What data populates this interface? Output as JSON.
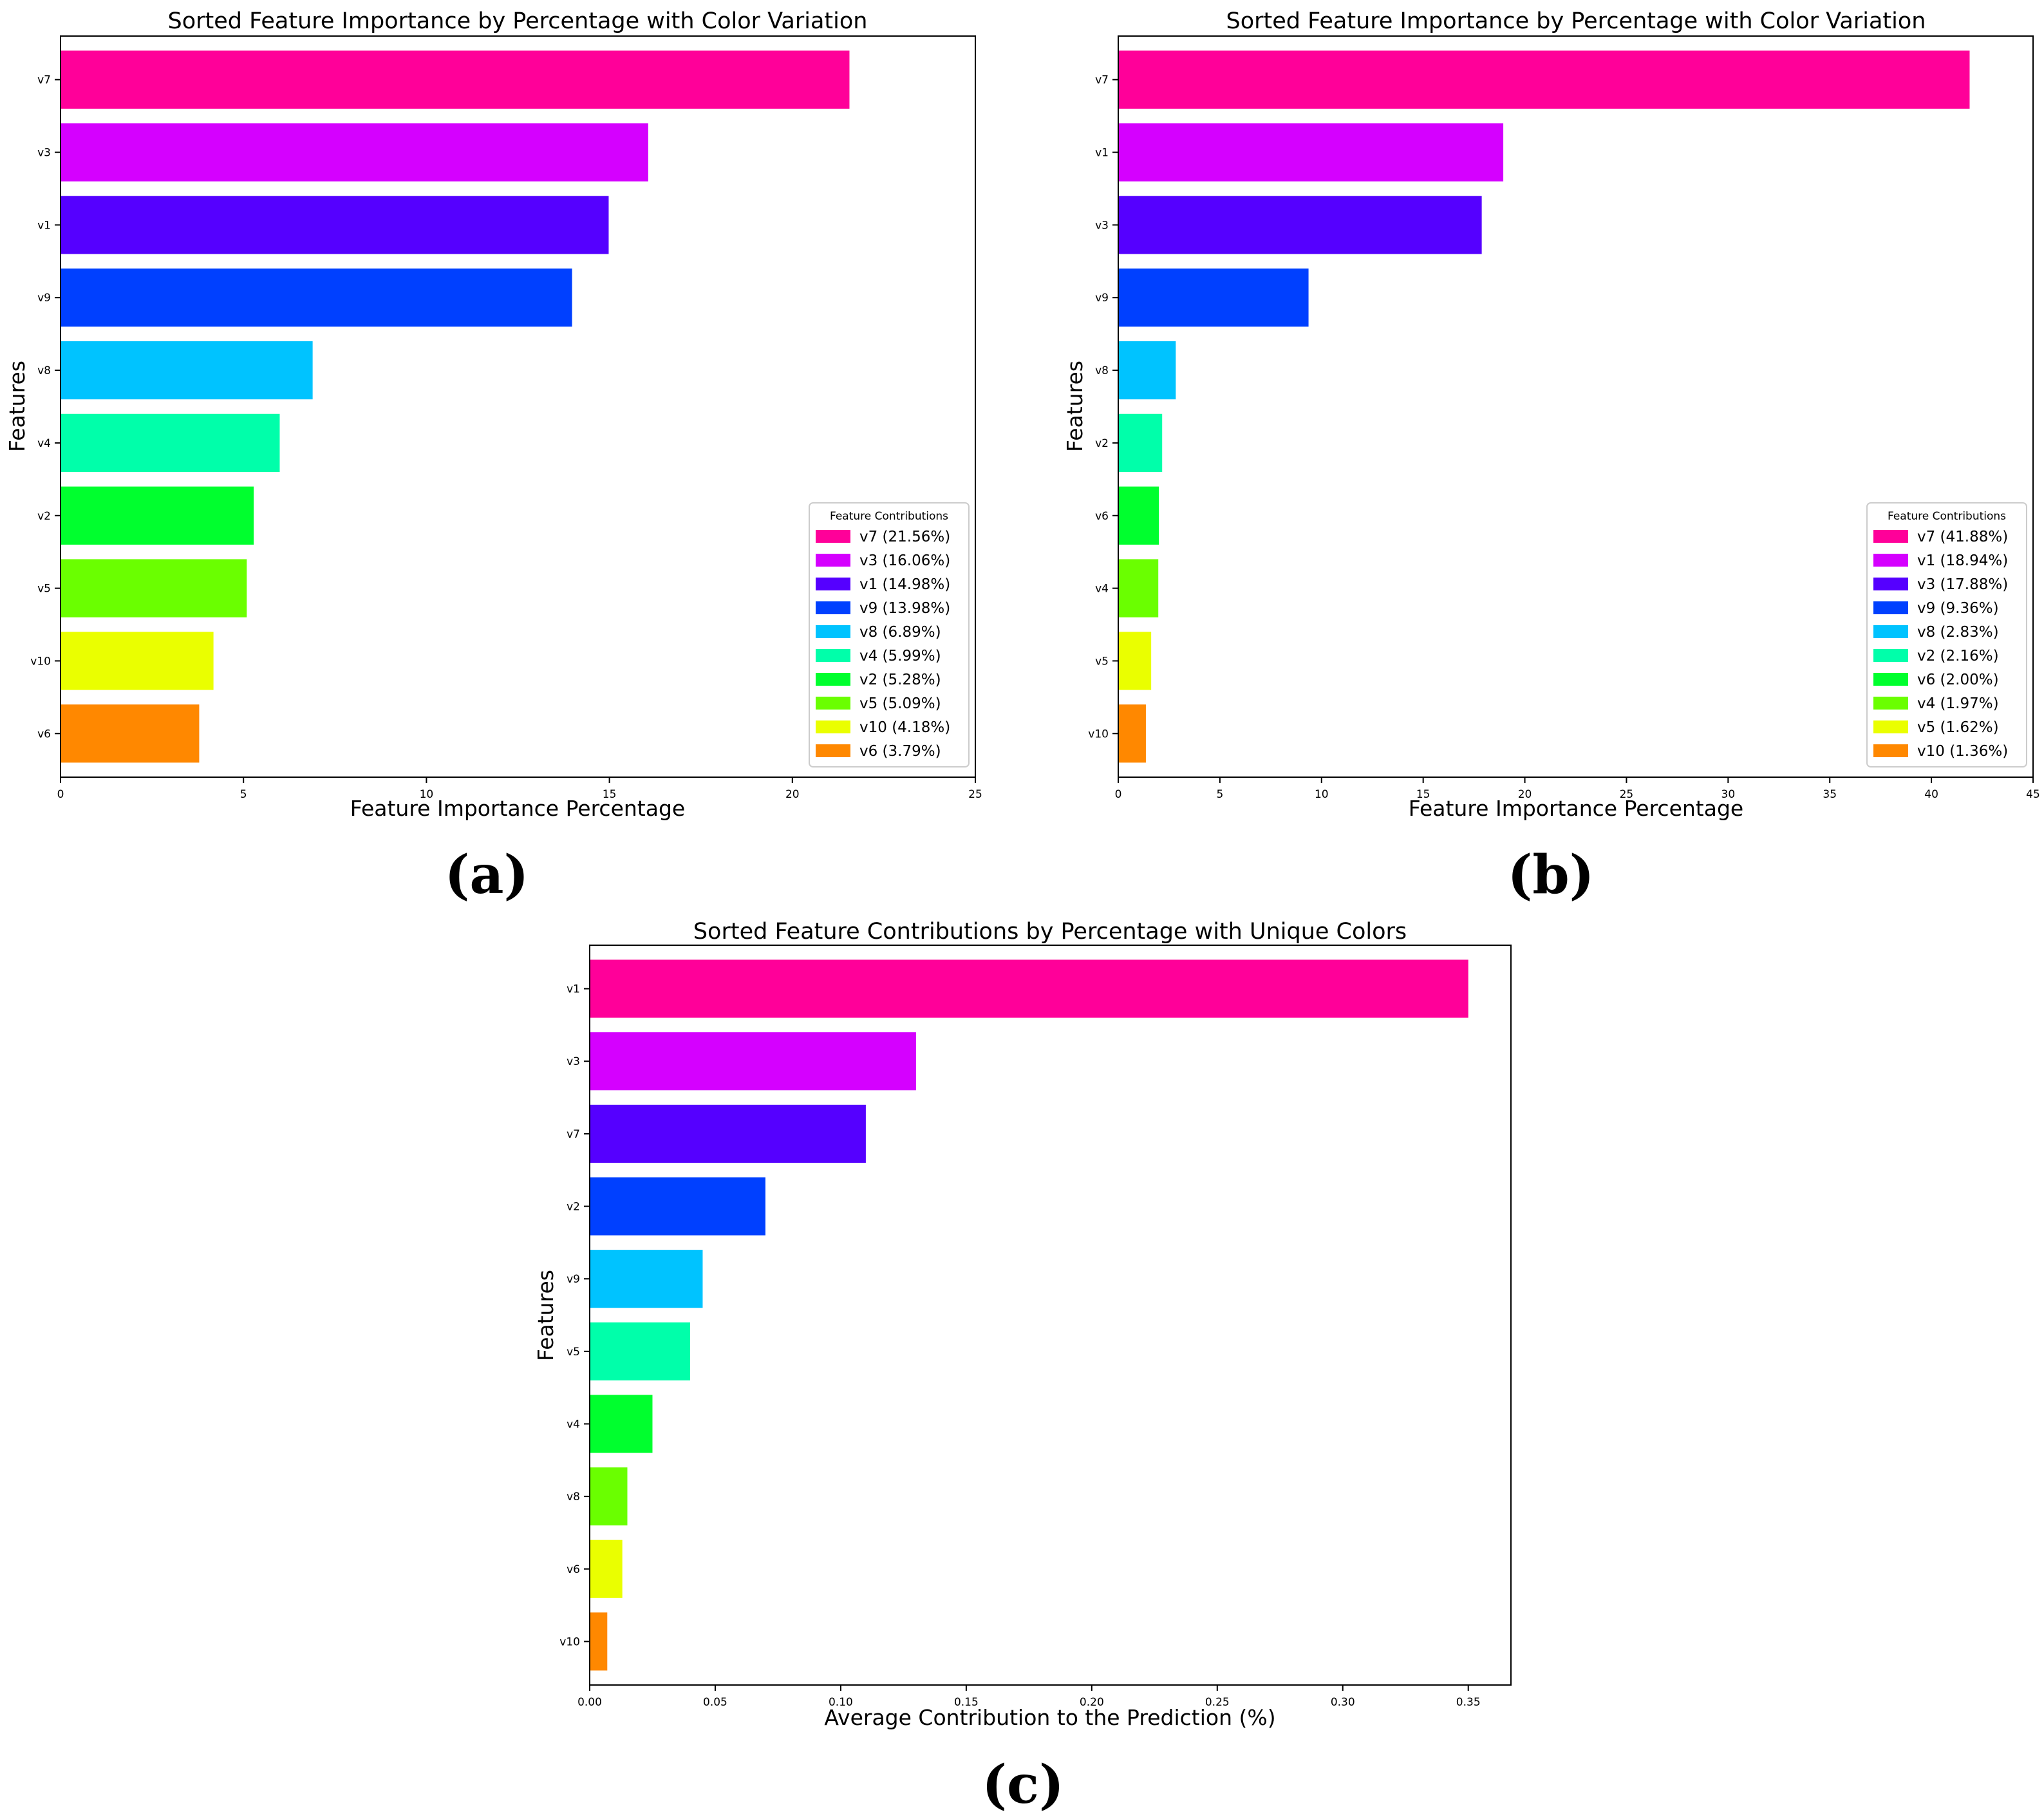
{
  "figure": {
    "panel_labels": [
      "(a)",
      "(b)",
      "(c)"
    ]
  },
  "chart_data": [
    {
      "type": "bar",
      "orientation": "horizontal",
      "title": "Sorted Feature Importance by Percentage with Color Variation",
      "xlabel": "Feature Importance Percentage",
      "ylabel": "Features",
      "xlim": [
        0,
        25
      ],
      "xticks": [
        0,
        5,
        10,
        15,
        20,
        25
      ],
      "xtick_labels": [
        "0",
        "5",
        "10",
        "15",
        "20",
        "25"
      ],
      "grid": false,
      "categories": [
        "v7",
        "v3",
        "v1",
        "v9",
        "v8",
        "v4",
        "v2",
        "v5",
        "v10",
        "v6"
      ],
      "values": [
        21.56,
        16.06,
        14.98,
        13.98,
        6.89,
        5.99,
        5.28,
        5.09,
        4.18,
        3.79
      ],
      "colors": [
        "#ff0099",
        "#d500ff",
        "#5500ff",
        "#0040ff",
        "#00c3ff",
        "#00ffaa",
        "#00ff2e",
        "#6aff00",
        "#eaff00",
        "#ff8800"
      ],
      "legend": {
        "title": "Feature Contributions",
        "placement": "lower right",
        "entries": [
          "v7 (21.56%)",
          "v3 (16.06%)",
          "v1 (14.98%)",
          "v9 (13.98%)",
          "v8 (6.89%)",
          "v4 (5.99%)",
          "v2 (5.28%)",
          "v5 (5.09%)",
          "v10 (4.18%)",
          "v6 (3.79%)"
        ]
      }
    },
    {
      "type": "bar",
      "orientation": "horizontal",
      "title": "Sorted Feature Importance by Percentage with Color Variation",
      "xlabel": "Feature Importance Percentage",
      "ylabel": "Features",
      "xlim": [
        0,
        45
      ],
      "xticks": [
        0,
        5,
        10,
        15,
        20,
        25,
        30,
        35,
        40,
        45
      ],
      "xtick_labels": [
        "0",
        "5",
        "10",
        "15",
        "20",
        "25",
        "30",
        "35",
        "40",
        "45"
      ],
      "grid": false,
      "categories": [
        "v7",
        "v1",
        "v3",
        "v9",
        "v8",
        "v2",
        "v6",
        "v4",
        "v5",
        "v10"
      ],
      "values": [
        41.88,
        18.94,
        17.88,
        9.36,
        2.83,
        2.16,
        2.0,
        1.97,
        1.62,
        1.36
      ],
      "colors": [
        "#ff0099",
        "#d500ff",
        "#5500ff",
        "#0040ff",
        "#00c3ff",
        "#00ffaa",
        "#00ff2e",
        "#6aff00",
        "#eaff00",
        "#ff8800"
      ],
      "legend": {
        "title": "Feature Contributions",
        "placement": "lower right",
        "entries": [
          "v7 (41.88%)",
          "v1 (18.94%)",
          "v3 (17.88%)",
          "v9 (9.36%)",
          "v8 (2.83%)",
          "v2 (2.16%)",
          "v6 (2.00%)",
          "v4 (1.97%)",
          "v5 (1.62%)",
          "v10 (1.36%)"
        ]
      }
    },
    {
      "type": "bar",
      "orientation": "horizontal",
      "title": "Sorted Feature Contributions by Percentage with Unique Colors",
      "xlabel": "Average Contribution to the Prediction (%)",
      "ylabel": "Features",
      "xlim": [
        0,
        0.367
      ],
      "xticks": [
        0,
        0.05,
        0.1,
        0.15,
        0.2,
        0.25,
        0.3,
        0.35
      ],
      "xtick_labels": [
        "0.00",
        "0.05",
        "0.10",
        "0.15",
        "0.20",
        "0.25",
        "0.30",
        "0.35"
      ],
      "grid": false,
      "categories": [
        "v1",
        "v3",
        "v7",
        "v2",
        "v9",
        "v5",
        "v4",
        "v8",
        "v6",
        "v10"
      ],
      "values": [
        0.35,
        0.13,
        0.11,
        0.07,
        0.045,
        0.04,
        0.025,
        0.015,
        0.013,
        0.007
      ],
      "colors": [
        "#ff0099",
        "#d500ff",
        "#5500ff",
        "#0040ff",
        "#00c3ff",
        "#00ffaa",
        "#00ff2e",
        "#6aff00",
        "#eaff00",
        "#ff8800"
      ]
    }
  ]
}
